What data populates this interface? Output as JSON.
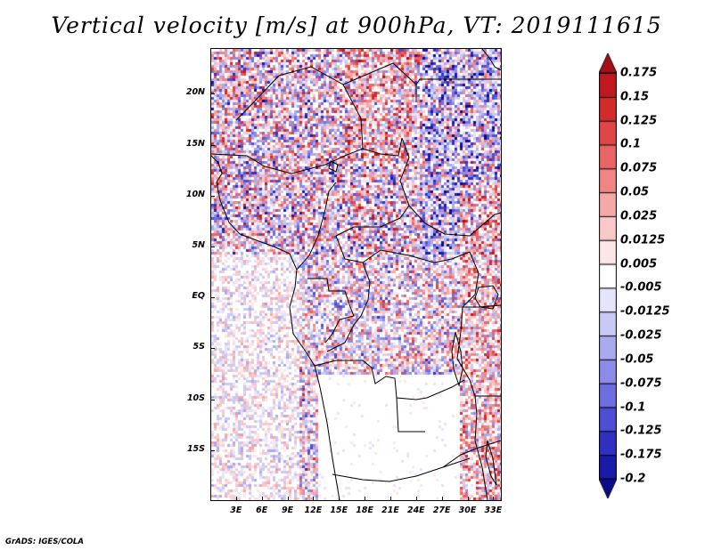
{
  "title": "Vertical velocity [m/s] at 900hPa, VT: 2019111615",
  "credit": "GrADS: IGES/COLA",
  "map": {
    "lon_range": [
      0,
      34
    ],
    "lat_range": [
      -20,
      24.5
    ],
    "lat_ticks": [
      {
        "value": 20,
        "label": "20N"
      },
      {
        "value": 15,
        "label": "15N"
      },
      {
        "value": 10,
        "label": "10N"
      },
      {
        "value": 5,
        "label": "5N"
      },
      {
        "value": 0,
        "label": "EQ"
      },
      {
        "value": -5,
        "label": "5S"
      },
      {
        "value": -10,
        "label": "10S"
      },
      {
        "value": -15,
        "label": "15S"
      }
    ],
    "lon_ticks": [
      {
        "value": 3,
        "label": "3E"
      },
      {
        "value": 6,
        "label": "6E"
      },
      {
        "value": 9,
        "label": "9E"
      },
      {
        "value": 12,
        "label": "12E"
      },
      {
        "value": 15,
        "label": "15E"
      },
      {
        "value": 18,
        "label": "18E"
      },
      {
        "value": 21,
        "label": "21E"
      },
      {
        "value": 24,
        "label": "24E"
      },
      {
        "value": 27,
        "label": "27E"
      },
      {
        "value": 30,
        "label": "30E"
      },
      {
        "value": 33,
        "label": "33E"
      }
    ]
  },
  "colorbar": {
    "labels": [
      "0.175",
      "0.15",
      "0.125",
      "0.1",
      "0.075",
      "0.05",
      "0.025",
      "0.0125",
      "0.005",
      "-0.005",
      "-0.0125",
      "-0.025",
      "-0.05",
      "-0.075",
      "-0.1",
      "-0.125",
      "-0.175",
      "-0.2"
    ],
    "colors": [
      "#a50f15",
      "#c0181e",
      "#d32a2a",
      "#e04646",
      "#e96464",
      "#ef8585",
      "#f5a8a8",
      "#f9c9c9",
      "#fde6e6",
      "#ffffff",
      "#e4e4fb",
      "#c9c9f5",
      "#aaaaef",
      "#8c8ce8",
      "#6e6ee0",
      "#4e4ed4",
      "#3030c0",
      "#1a1aa8",
      "#0b0b8a"
    ]
  }
}
